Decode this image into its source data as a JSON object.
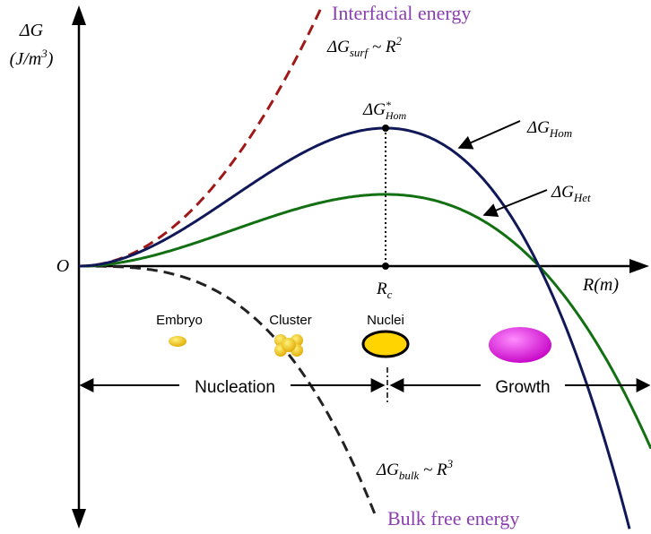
{
  "axis": {
    "y_label": "ΔG",
    "y_unit": {
      "open": "(J/m",
      "sup": "3",
      "close": ")"
    },
    "origin": "O",
    "x_label": "R(m)"
  },
  "annotations": {
    "interfacial": "Interfacial energy",
    "surf": {
      "main": "ΔG",
      "sub": "surf",
      "tail": " ~ R",
      "sup": "2"
    },
    "critical": {
      "main": "ΔG",
      "sup": "*",
      "sub": "Hom"
    },
    "hom": {
      "main": "ΔG",
      "sub": "Hom"
    },
    "het": {
      "main": "ΔG",
      "sub": "Het"
    },
    "rc": {
      "main": "R",
      "sub": "c"
    },
    "bulk": {
      "main": "ΔG",
      "sub": "bulk",
      "tail": " ~ R",
      "sup": "3"
    },
    "bulk_title": "Bulk free energy"
  },
  "stages": [
    "Embryo",
    "Cluster",
    "Nuclei"
  ],
  "regions": [
    "Nucleation",
    "Growth"
  ]
}
